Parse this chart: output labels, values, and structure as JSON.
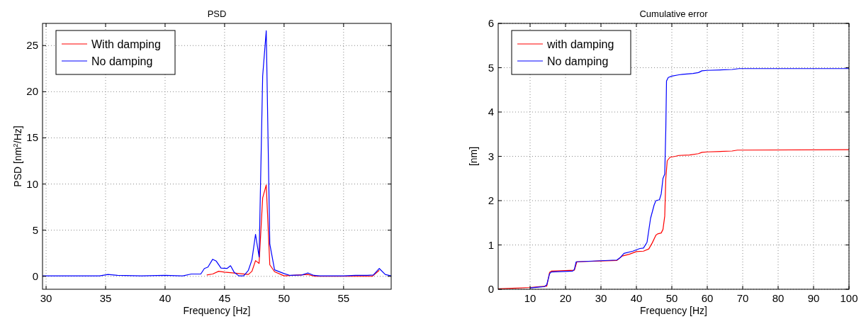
{
  "chart_data": [
    {
      "type": "line",
      "title": "PSD",
      "xlabel": "Frequency [Hz]",
      "ylabel": "PSD [nm$^{2}$/Hz]",
      "xlim": [
        29.7,
        59
      ],
      "xticks": [
        30,
        35,
        40,
        45,
        50,
        55
      ],
      "ylim": [
        -1.4,
        27.4
      ],
      "yticks": [
        0,
        5,
        10,
        15,
        20,
        25
      ],
      "grid": true,
      "legend": "top left",
      "line_style": "solid",
      "marker": "none",
      "series": [
        {
          "name": "With damping",
          "color": "#ff0000",
          "x": [
            43.5,
            44,
            44.5,
            45,
            45.5,
            47,
            47.3,
            47.6,
            47.9,
            48.2,
            48.5,
            48.8,
            49.2,
            50,
            52,
            52.6,
            57.4,
            58
          ],
          "values": [
            0.15,
            0.25,
            0.55,
            0.45,
            0.4,
            0.2,
            0.55,
            1.7,
            1.4,
            8.5,
            9.9,
            1.25,
            0.5,
            0.05,
            0.2,
            0.0,
            0.0,
            0.65
          ]
        },
        {
          "name": "No damping",
          "color": "#0000ff",
          "x": [
            29.7,
            31,
            33,
            34.5,
            35.2,
            36,
            38,
            40,
            41.5,
            42.2,
            43,
            43.3,
            43.6,
            44,
            44.3,
            44.7,
            45.2,
            45.5,
            45.8,
            46.2,
            46.6,
            47,
            47.3,
            47.6,
            47.9,
            48.2,
            48.5,
            48.8,
            49.2,
            50,
            50.5,
            51.5,
            52,
            52.5,
            53,
            55,
            56,
            57,
            57.5,
            58,
            58.5,
            59
          ],
          "values": [
            0.05,
            0.05,
            0.05,
            0.05,
            0.2,
            0.1,
            0.05,
            0.1,
            0.05,
            0.25,
            0.25,
            0.85,
            1.0,
            1.85,
            1.65,
            0.9,
            0.85,
            1.15,
            0.45,
            0.05,
            0.05,
            0.65,
            1.8,
            4.55,
            2.1,
            21.7,
            26.6,
            3.5,
            0.7,
            0.3,
            0.1,
            0.15,
            0.37,
            0.1,
            0.05,
            0.05,
            0.1,
            0.1,
            0.15,
            0.85,
            0.2,
            0.05
          ]
        }
      ]
    },
    {
      "type": "line",
      "title": "Cumulative error",
      "xlabel": "Frequency [Hz]",
      "ylabel": "[nm]",
      "xlim": [
        1,
        100
      ],
      "xticks": [
        10,
        20,
        30,
        40,
        50,
        60,
        70,
        80,
        90,
        100
      ],
      "ylim": [
        0,
        6
      ],
      "yticks": [
        0,
        1,
        2,
        3,
        4,
        5,
        6
      ],
      "grid": true,
      "legend": "top left",
      "line_style": "solid",
      "marker": "none",
      "series": [
        {
          "name": "with damping",
          "color": "#ff0000",
          "x": [
            1,
            10,
            14.7,
            15.5,
            16,
            22.5,
            23.2,
            34.5,
            36,
            38,
            40,
            42,
            43.5,
            44.5,
            45.5,
            46,
            47,
            47.5,
            48,
            48.3,
            48.7,
            49.5,
            51,
            52,
            55,
            57.5,
            58.5,
            60,
            67,
            68.5,
            100
          ],
          "values": [
            0.01,
            0.04,
            0.07,
            0.38,
            0.41,
            0.43,
            0.62,
            0.65,
            0.75,
            0.79,
            0.85,
            0.86,
            0.91,
            1.05,
            1.22,
            1.25,
            1.27,
            1.35,
            1.65,
            2.5,
            2.9,
            2.98,
            3.0,
            3.02,
            3.03,
            3.06,
            3.09,
            3.1,
            3.12,
            3.14,
            3.15
          ]
        },
        {
          "name": "No damping",
          "color": "#0000ff",
          "x": [
            10,
            14,
            14.7,
            15.5,
            16,
            22,
            22.5,
            23,
            34.5,
            35.5,
            36.5,
            39,
            41,
            42,
            43,
            44,
            45,
            45.5,
            46.5,
            47,
            47.5,
            48,
            48.3,
            48.5,
            49,
            50,
            52,
            53,
            56,
            57.5,
            58.5,
            60,
            67,
            69,
            100
          ],
          "values": [
            0.03,
            0.06,
            0.1,
            0.35,
            0.39,
            0.41,
            0.45,
            0.62,
            0.66,
            0.72,
            0.81,
            0.86,
            0.92,
            0.93,
            1.06,
            1.6,
            1.9,
            2.0,
            2.02,
            2.15,
            2.5,
            2.6,
            3.6,
            4.7,
            4.78,
            4.81,
            4.84,
            4.85,
            4.87,
            4.89,
            4.93,
            4.94,
            4.96,
            4.98,
            4.98
          ]
        }
      ]
    }
  ]
}
